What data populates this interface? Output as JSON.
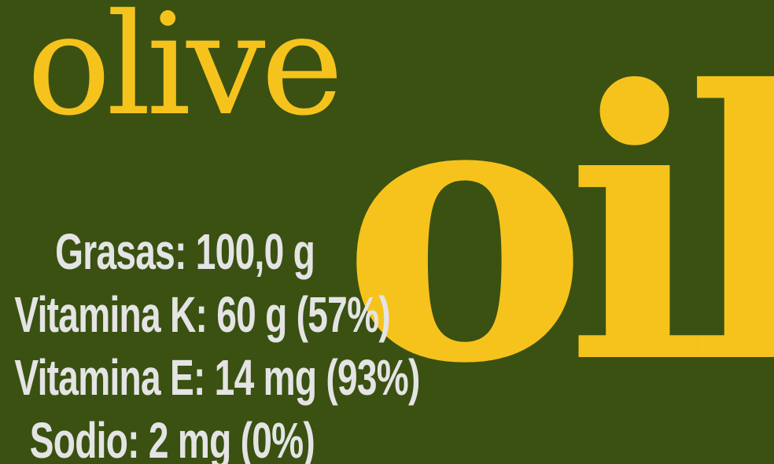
{
  "brand": {
    "word_small": "olive",
    "word_large": "oil"
  },
  "nutrition": [
    "Grasas: 100,0 g",
    "Vitamina K: 60 g (57%)",
    "Vitamina E: 14 mg (93%)",
    "Sodio: 2 mg (0%)"
  ],
  "colors": {
    "background": "#3a5112",
    "title": "#f6c31c",
    "text": "#e4e4e4"
  }
}
